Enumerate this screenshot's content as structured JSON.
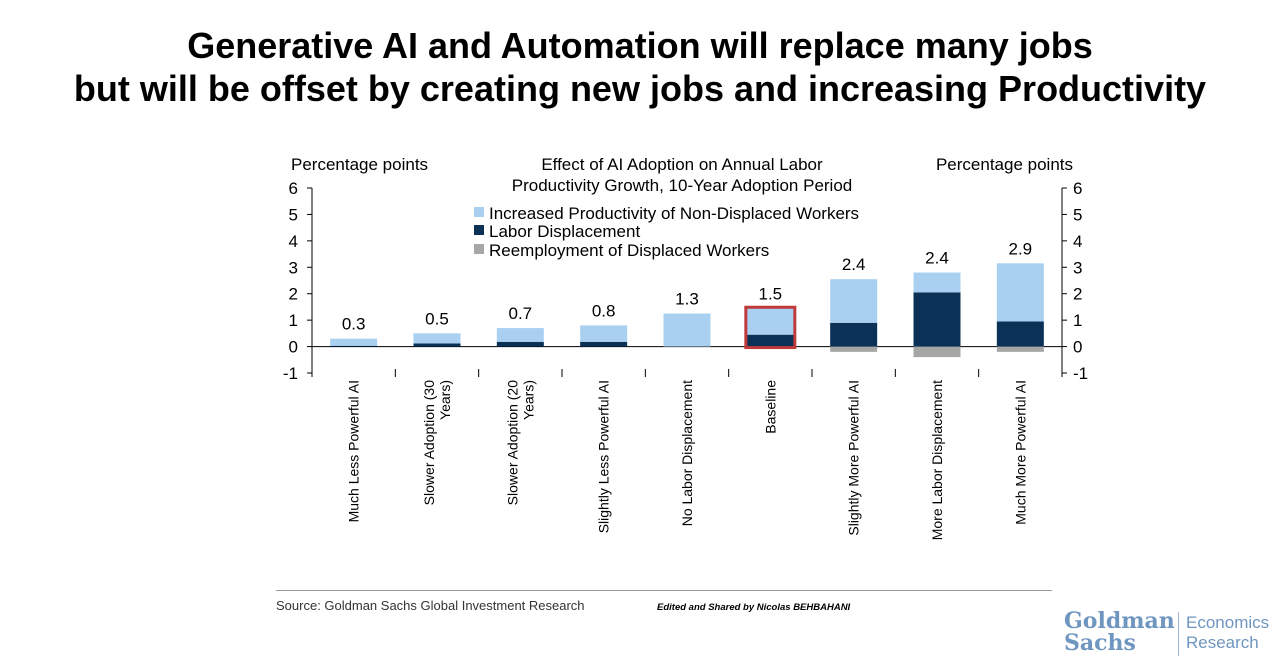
{
  "headline": {
    "line1": "Generative AI and Automation will replace many jobs",
    "line2": "but will be offset by creating new jobs and increasing Productivity"
  },
  "chart_data": {
    "type": "bar",
    "title_line1": "Effect of AI Adoption on Annual Labor",
    "title_line2": "Productivity Growth, 10-Year Adoption Period",
    "ylabel_left": "Percentage points",
    "ylabel_right": "Percentage points",
    "ylim": [
      -1,
      6
    ],
    "yticks": [
      "6",
      "5",
      "4",
      "3",
      "2",
      "1",
      "0",
      "-1"
    ],
    "categories": [
      [
        "Much Less Powerful AI"
      ],
      [
        "Slower Adoption (30",
        "Years)"
      ],
      [
        "Slower Adoption (20",
        "Years)"
      ],
      [
        "Slightly Less Powerful AI"
      ],
      [
        "No Labor Displacement"
      ],
      [
        "Baseline"
      ],
      [
        "Slightly More Powerful AI"
      ],
      [
        "More Labor Displacement"
      ],
      [
        "Much More Powerful AI"
      ]
    ],
    "series": [
      {
        "name": "Increased Productivity of Non-Displaced Workers",
        "color": "#a9d0f0",
        "values": [
          0.27,
          0.38,
          0.52,
          0.62,
          1.25,
          1.0,
          1.65,
          0.75,
          2.2
        ]
      },
      {
        "name": "Labor Displacement",
        "color": "#0b3157",
        "values": [
          0.03,
          0.12,
          0.18,
          0.18,
          0.0,
          0.45,
          0.9,
          2.05,
          0.95
        ]
      },
      {
        "name": "Reemployment of Displaced Workers",
        "color": "#a6a6a6",
        "values": [
          0.0,
          0.0,
          0.0,
          0.0,
          0.0,
          0.0,
          -0.2,
          -0.4,
          -0.2
        ]
      }
    ],
    "totals": [
      "0.3",
      "0.5",
      "0.7",
      "0.8",
      "1.3",
      "1.5",
      "2.4",
      "2.4",
      "2.9"
    ],
    "highlight_index": 5,
    "highlight_color": "#c0393b"
  },
  "footer": {
    "source": "Source: Goldman Sachs Global Investment Research",
    "edited": "Edited and Shared by Nicolas BEHBAHANI",
    "logo_line1": "Goldman",
    "logo_line2": "Sachs",
    "logo_right1": "Economics",
    "logo_right2": "Research"
  }
}
